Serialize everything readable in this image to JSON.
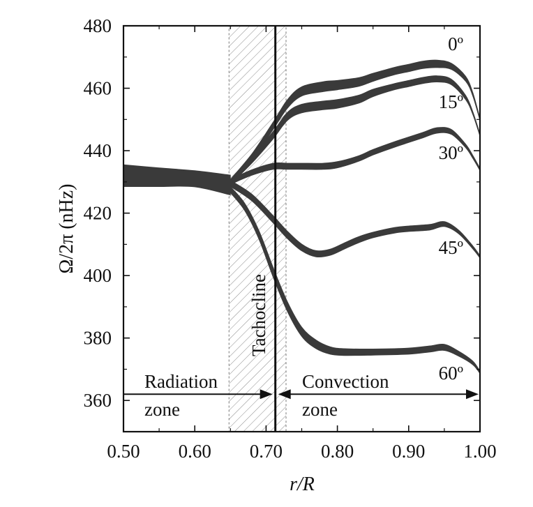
{
  "chart_data": {
    "type": "area",
    "title": "",
    "xlabel": "r/R",
    "ylabel": "Ω/2π (nHz)",
    "xlim": [
      0.5,
      1.0
    ],
    "ylim": [
      350,
      480
    ],
    "xticks": [
      0.5,
      0.6,
      0.7,
      0.8,
      0.9,
      1.0
    ],
    "xtick_labels": [
      "0.50",
      "0.60",
      "0.70",
      "0.80",
      "0.90",
      "1.00"
    ],
    "yticks": [
      360,
      380,
      400,
      420,
      440,
      460,
      480
    ],
    "ytick_labels": [
      "360",
      "380",
      "400",
      "420",
      "440",
      "460",
      "480"
    ],
    "grid": false,
    "tachocline": {
      "label": "Tachocline",
      "r": 0.713,
      "band": [
        0.648,
        0.728
      ]
    },
    "zone_arrow_y": 362,
    "zones": [
      {
        "line1": "Radiation",
        "line2": "zone"
      },
      {
        "line1": "Convection",
        "line2": "zone"
      }
    ],
    "interior": {
      "r": [
        0.5,
        0.55,
        0.6,
        0.65
      ],
      "center": [
        432,
        431.5,
        431,
        429
      ],
      "half_width": [
        3.5,
        3.0,
        2.6,
        3.2
      ]
    },
    "series": [
      {
        "name": "0º",
        "x": [
          0.65,
          0.68,
          0.71,
          0.73,
          0.75,
          0.78,
          0.8,
          0.83,
          0.85,
          0.88,
          0.9,
          0.92,
          0.94,
          0.96,
          0.98,
          0.99,
          1.0
        ],
        "center": [
          430,
          438,
          448,
          455,
          459,
          460.5,
          461,
          462,
          463.5,
          465.5,
          466.5,
          467.5,
          467.8,
          467,
          463,
          458,
          450
        ],
        "half_width": [
          0.8,
          1.0,
          1.2,
          1.4,
          1.5,
          1.6,
          1.5,
          1.4,
          1.3,
          1.2,
          1.2,
          1.2,
          1.2,
          1.0,
          0.8,
          0.6,
          0.4
        ]
      },
      {
        "name": "15º",
        "x": [
          0.65,
          0.68,
          0.71,
          0.73,
          0.75,
          0.78,
          0.8,
          0.83,
          0.85,
          0.88,
          0.9,
          0.92,
          0.94,
          0.96,
          0.98,
          0.99,
          1.0
        ],
        "center": [
          430,
          437,
          445,
          451,
          453.5,
          454.5,
          455,
          456.5,
          458.5,
          460.5,
          461.5,
          462.5,
          463,
          462,
          457,
          452,
          445
        ],
        "half_width": [
          0.8,
          1.0,
          1.2,
          1.3,
          1.4,
          1.4,
          1.4,
          1.3,
          1.2,
          1.0,
          1.0,
          1.0,
          1.0,
          0.9,
          0.7,
          0.5,
          0.4
        ]
      },
      {
        "name": "30º",
        "x": [
          0.65,
          0.68,
          0.71,
          0.73,
          0.75,
          0.78,
          0.8,
          0.83,
          0.85,
          0.88,
          0.9,
          0.92,
          0.94,
          0.96,
          0.98,
          0.99,
          1.0
        ],
        "center": [
          430,
          433,
          435,
          435,
          435,
          435,
          435.5,
          437.5,
          439.5,
          442,
          443.5,
          445,
          446.5,
          446,
          441.5,
          438,
          434
        ],
        "half_width": [
          0.8,
          0.9,
          1.0,
          1.0,
          1.0,
          1.0,
          1.0,
          0.9,
          0.9,
          0.9,
          0.9,
          0.9,
          0.9,
          0.8,
          0.6,
          0.5,
          0.4
        ]
      },
      {
        "name": "45º",
        "x": [
          0.65,
          0.68,
          0.71,
          0.73,
          0.75,
          0.77,
          0.79,
          0.81,
          0.83,
          0.85,
          0.88,
          0.9,
          0.93,
          0.95,
          0.97,
          0.99,
          1.0
        ],
        "center": [
          429.5,
          425,
          418,
          413,
          409,
          407,
          407.5,
          409.5,
          411.5,
          413,
          414.5,
          415,
          415.5,
          416.5,
          414,
          409,
          406
        ],
        "half_width": [
          1.0,
          1.1,
          1.2,
          1.2,
          1.1,
          1.0,
          1.0,
          1.0,
          1.0,
          0.9,
          0.9,
          0.9,
          0.9,
          0.8,
          0.6,
          0.5,
          0.4
        ]
      },
      {
        "name": "60º",
        "x": [
          0.65,
          0.67,
          0.69,
          0.71,
          0.73,
          0.75,
          0.77,
          0.79,
          0.81,
          0.85,
          0.9,
          0.93,
          0.95,
          0.97,
          0.99,
          1.0
        ],
        "center": [
          427.5,
          422,
          413,
          401,
          390,
          382,
          378,
          376,
          375.5,
          375.5,
          375.8,
          376.5,
          377,
          375,
          372,
          369
        ],
        "half_width": [
          1.0,
          1.2,
          1.4,
          1.6,
          1.6,
          1.5,
          1.4,
          1.2,
          1.1,
          1.0,
          1.0,
          1.0,
          1.0,
          0.8,
          0.6,
          0.4
        ]
      }
    ]
  }
}
